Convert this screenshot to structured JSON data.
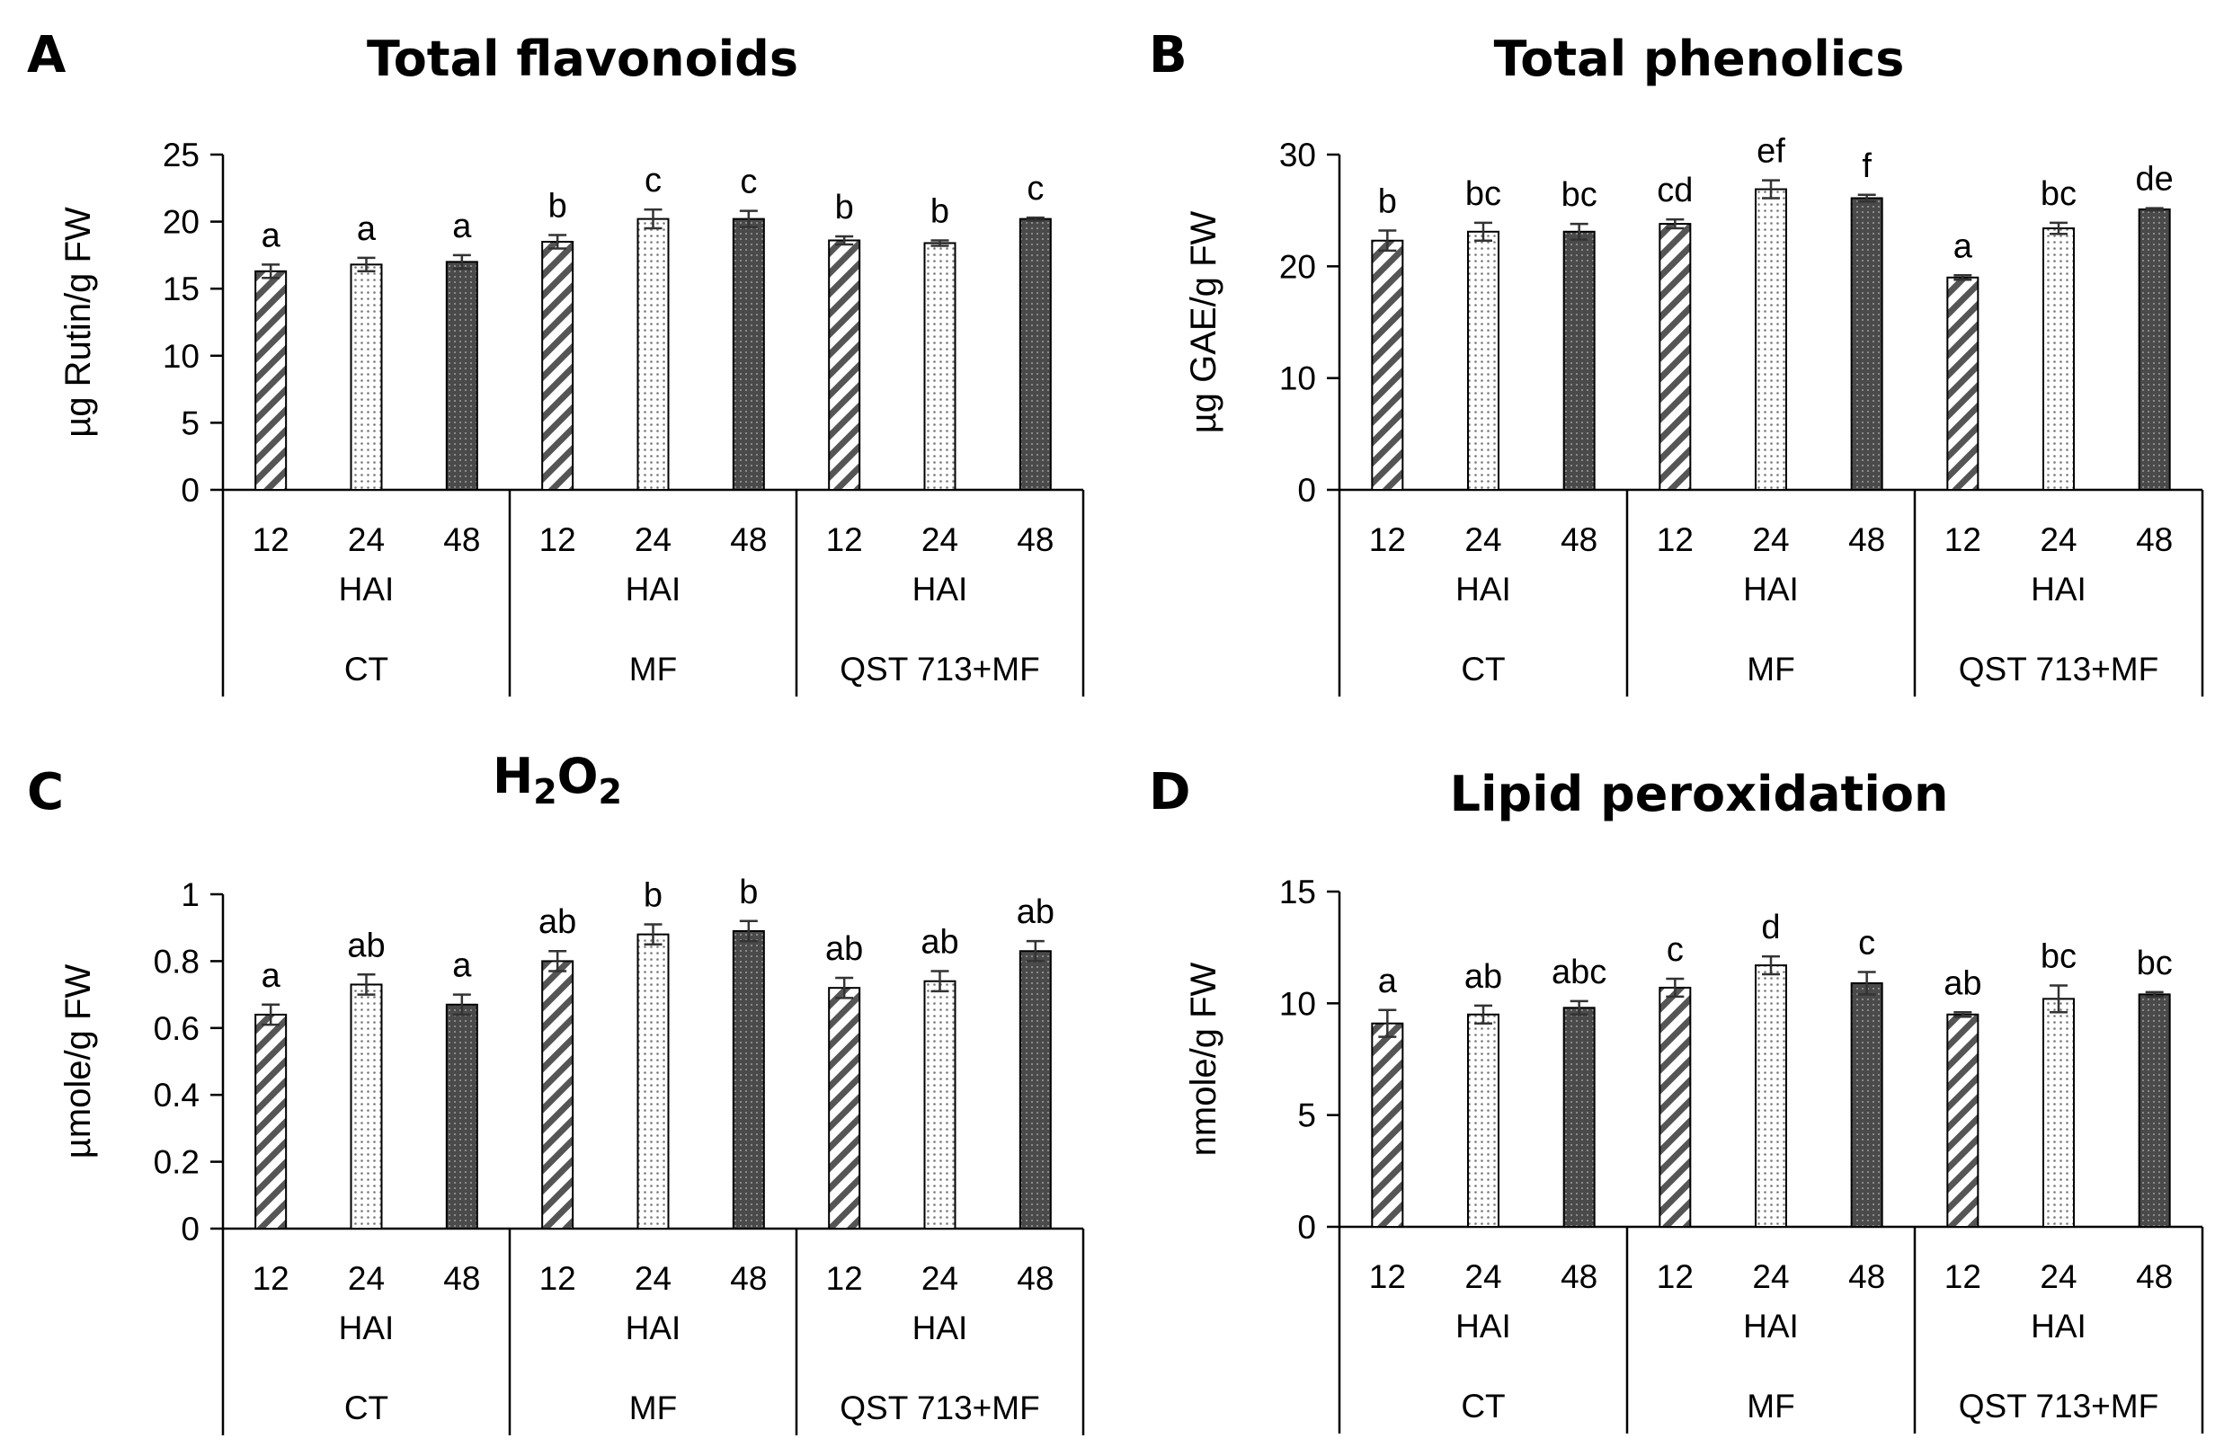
{
  "figure": {
    "time_unit_label": "HAI",
    "series_names": [
      "12 HAI",
      "24 HAI",
      "48 HAI"
    ]
  },
  "chart_data": [
    {
      "type": "bar",
      "panel": "A",
      "title": "Total flavonoids",
      "ylabel": "µg Rutin/g FW",
      "ylim": [
        0,
        25
      ],
      "yticks": [
        0,
        5,
        10,
        15,
        20,
        25
      ],
      "groups": [
        "CT",
        "MF",
        "QST 713+MF"
      ],
      "times": [
        "12",
        "24",
        "48"
      ],
      "time_unit": "HAI",
      "values": [
        [
          16.3,
          16.8,
          17.0
        ],
        [
          18.5,
          20.2,
          20.2
        ],
        [
          18.6,
          18.4,
          20.2
        ]
      ],
      "errors": [
        [
          0.5,
          0.5,
          0.5
        ],
        [
          0.5,
          0.7,
          0.6
        ],
        [
          0.3,
          0.2,
          0.1
        ]
      ],
      "letters": [
        [
          "a",
          "a",
          "a"
        ],
        [
          "b",
          "c",
          "c"
        ],
        [
          "b",
          "b",
          "c"
        ]
      ]
    },
    {
      "type": "bar",
      "panel": "B",
      "title": "Total phenolics",
      "ylabel": "µg GAE/g FW",
      "ylim": [
        0,
        30
      ],
      "yticks": [
        0,
        10,
        20,
        30
      ],
      "groups": [
        "CT",
        "MF",
        "QST 713+MF"
      ],
      "times": [
        "12",
        "24",
        "48"
      ],
      "time_unit": "HAI",
      "values": [
        [
          22.3,
          23.1,
          23.1
        ],
        [
          23.8,
          26.9,
          26.1
        ],
        [
          19.0,
          23.4,
          25.1
        ]
      ],
      "errors": [
        [
          0.9,
          0.8,
          0.7
        ],
        [
          0.4,
          0.8,
          0.3
        ],
        [
          0.2,
          0.5,
          0.1
        ]
      ],
      "letters": [
        [
          "b",
          "bc",
          "bc"
        ],
        [
          "cd",
          "ef",
          "f"
        ],
        [
          "a",
          "bc",
          "de"
        ]
      ]
    },
    {
      "type": "bar",
      "panel": "C",
      "title": "H2O2",
      "title_main": "H",
      "title_sub1": "2",
      "title_mid": "O",
      "title_sub2": "2",
      "ylabel": "µmole/g FW",
      "ylim": [
        0,
        1
      ],
      "yticks": [
        0,
        0.2,
        0.4,
        0.6,
        0.8,
        1
      ],
      "ytick_labels": [
        "0",
        "0.2",
        "0.4",
        "0.6",
        "0.8",
        "1"
      ],
      "groups": [
        "CT",
        "MF",
        "QST 713+MF"
      ],
      "times": [
        "12",
        "24",
        "48"
      ],
      "time_unit": "HAI",
      "values": [
        [
          0.64,
          0.73,
          0.67
        ],
        [
          0.8,
          0.88,
          0.89
        ],
        [
          0.72,
          0.74,
          0.83
        ]
      ],
      "errors": [
        [
          0.03,
          0.03,
          0.03
        ],
        [
          0.03,
          0.03,
          0.03
        ],
        [
          0.03,
          0.03,
          0.03
        ]
      ],
      "letters": [
        [
          "a",
          "ab",
          "a"
        ],
        [
          "ab",
          "b",
          "b"
        ],
        [
          "ab",
          "ab",
          "ab"
        ]
      ]
    },
    {
      "type": "bar",
      "panel": "D",
      "title": "Lipid peroxidation",
      "ylabel": "nmole/g FW",
      "ylim": [
        0,
        15
      ],
      "yticks": [
        0,
        5,
        10,
        15
      ],
      "groups": [
        "CT",
        "MF",
        "QST 713+MF"
      ],
      "times": [
        "12",
        "24",
        "48"
      ],
      "time_unit": "HAI",
      "values": [
        [
          9.1,
          9.5,
          9.8
        ],
        [
          10.7,
          11.7,
          10.9
        ],
        [
          9.5,
          10.2,
          10.4
        ]
      ],
      "errors": [
        [
          0.6,
          0.4,
          0.3
        ],
        [
          0.4,
          0.4,
          0.5
        ],
        [
          0.1,
          0.6,
          0.1
        ]
      ],
      "letters": [
        [
          "a",
          "ab",
          "abc"
        ],
        [
          "c",
          "d",
          "c"
        ],
        [
          "ab",
          "bc",
          "bc"
        ]
      ]
    }
  ]
}
